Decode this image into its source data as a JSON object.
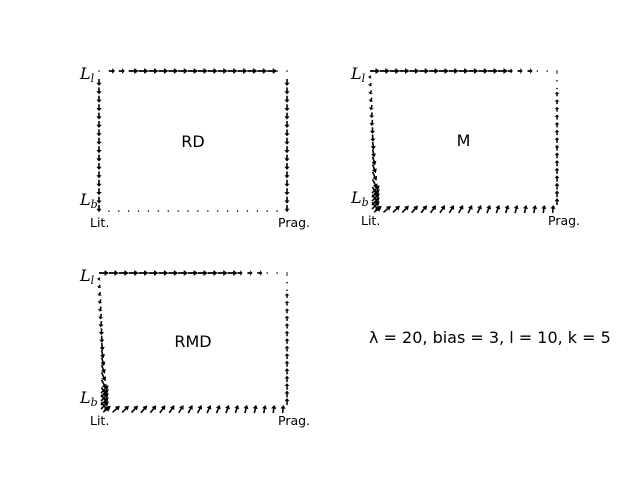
{
  "chart_data": [
    {
      "type": "vector_field",
      "title": "RD",
      "corner_labels": {
        "top_left": "L",
        "top_left_sub": "l",
        "bottom_left": "L",
        "bottom_left_sub": "b"
      },
      "x_labels": {
        "left": "Lit.",
        "right": "Prag."
      },
      "flows": {
        "top": "rightward",
        "left": "downward",
        "right": "downward",
        "bottom": "none",
        "interior_left_edge_converging": false
      }
    },
    {
      "type": "vector_field",
      "title": "M",
      "corner_labels": {
        "top_left": "L",
        "top_left_sub": "l",
        "bottom_left": "L",
        "bottom_left_sub": "b"
      },
      "x_labels": {
        "left": "Lit.",
        "right": "Prag."
      },
      "flows": {
        "top": "rightward",
        "left": "downward-diagonal",
        "right": "upward",
        "bottom": "rightward-diagonal",
        "interior_left_edge_converging": true
      }
    },
    {
      "type": "vector_field",
      "title": "RMD",
      "corner_labels": {
        "top_left": "L",
        "top_left_sub": "l",
        "bottom_left": "L",
        "bottom_left_sub": "b"
      },
      "x_labels": {
        "left": "Lit.",
        "right": "Prag."
      },
      "flows": {
        "top": "rightward",
        "left": "downward-diagonal",
        "right": "upward",
        "bottom": "rightward-diagonal",
        "interior_left_edge_converging": true
      }
    }
  ],
  "parameters_text": "λ = 20, bias = 3, l = 10, k = 5"
}
